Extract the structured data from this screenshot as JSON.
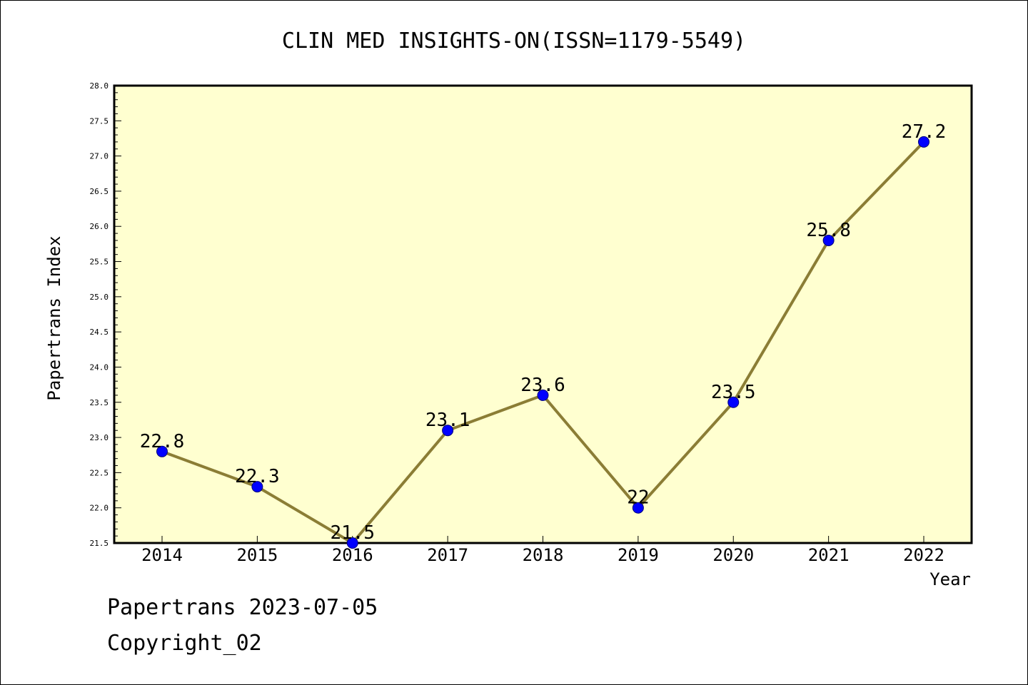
{
  "chart_data": {
    "type": "line",
    "title": "CLIN MED INSIGHTS-ON(ISSN=1179-5549)",
    "xlabel": "Year",
    "ylabel": "Papertrans Index",
    "categories": [
      "2014",
      "2015",
      "2016",
      "2017",
      "2018",
      "2019",
      "2020",
      "2021",
      "2022"
    ],
    "series": [
      {
        "values": [
          22.8,
          22.3,
          21.5,
          23.1,
          23.6,
          22.0,
          23.5,
          25.8,
          27.2
        ],
        "data_labels": [
          "22.8",
          "22.3",
          "21.5",
          "23.1",
          "23.6",
          "22",
          "23.5",
          "25.8",
          "27.2"
        ]
      }
    ],
    "ylim": [
      21.5,
      28.0
    ],
    "y_ticks": [
      "21.5",
      "22.0",
      "22.5",
      "23.0",
      "23.5",
      "24.0",
      "24.5",
      "25.0",
      "25.5",
      "26.0",
      "26.5",
      "27.0",
      "27.5",
      "28.0"
    ],
    "grid": false,
    "colors": {
      "plot_background": "#ffffd0",
      "line": "#8b7d35",
      "marker": "#0000ff"
    }
  },
  "footer": {
    "line1": "Papertrans 2023-07-05",
    "line2": "Copyright_02"
  }
}
